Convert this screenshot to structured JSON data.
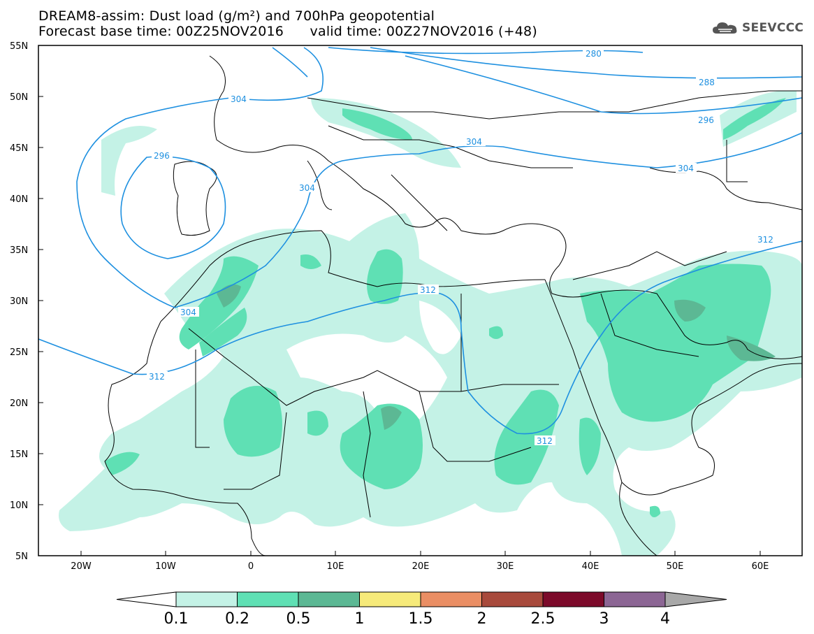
{
  "title": {
    "line1": "DREAM8-assim: Dust load (g/m²) and 700hPa geopotential",
    "line2": "Forecast base time: 00Z25NOV2016      valid time: 00Z27NOV2016 (+48)"
  },
  "logo": {
    "text": "SEEVCCC",
    "icon": "cloud-icon"
  },
  "map": {
    "lat_ticks": [
      "55N",
      "50N",
      "45N",
      "40N",
      "35N",
      "30N",
      "25N",
      "20N",
      "15N",
      "10N",
      "5N"
    ],
    "lon_ticks": [
      "20W",
      "10W",
      "0",
      "10E",
      "20E",
      "30E",
      "40E",
      "50E",
      "60E"
    ],
    "extent": {
      "lon_min": -25,
      "lon_max": 65,
      "lat_min": 5,
      "lat_max": 55
    },
    "contour_color": "#1e90e0",
    "contour_labels": [
      "280",
      "288",
      "296",
      "296",
      "304",
      "304",
      "304",
      "304",
      "304",
      "312",
      "312",
      "312",
      "312"
    ]
  },
  "colorbar": {
    "labels": [
      "0.1",
      "0.2",
      "0.5",
      "1",
      "1.5",
      "2",
      "2.5",
      "3",
      "4"
    ],
    "colors": [
      "#c4f2e6",
      "#5fe0b4",
      "#5cb894",
      "#f6ea7a",
      "#ea8e64",
      "#a84a3c",
      "#7c0a2a",
      "#8c6694",
      "#a8a8a8"
    ],
    "under_color": "#ffffff"
  }
}
